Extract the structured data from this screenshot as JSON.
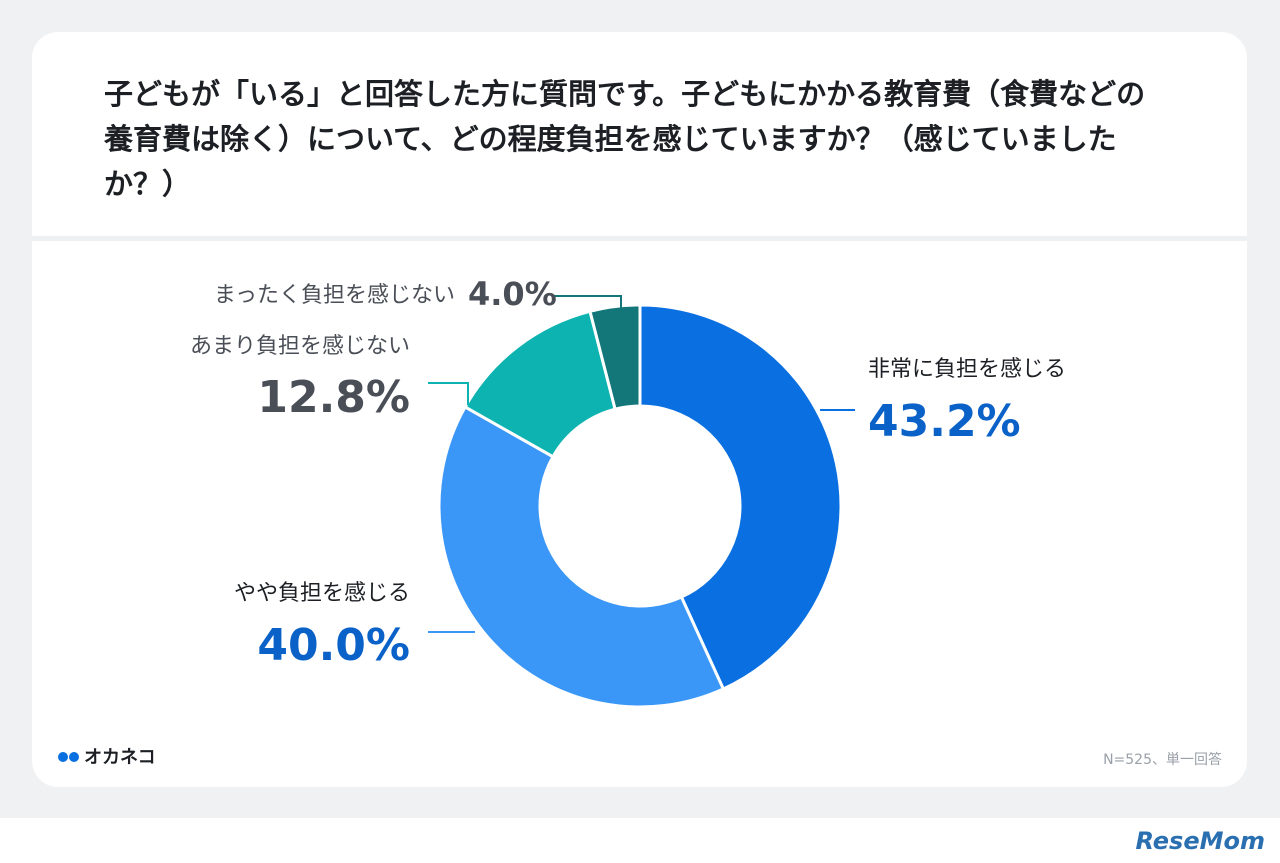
{
  "chart_data": {
    "type": "donut",
    "title": "子どもが「いる」と回答した方に質問です。子どもにかかる教育費（食費などの養育費は除く）について、どの程度負担を感じていますか？（感じていましたか？）",
    "categories": [
      "非常に負担を感じる",
      "やや負担を感じる",
      "あまり負担を感じない",
      "まったく負担を感じない"
    ],
    "values": [
      43.2,
      40.0,
      12.8,
      4.0
    ],
    "value_labels": [
      "43.2%",
      "40.0%",
      "12.8%",
      "4.0%"
    ],
    "colors": [
      "#0a6fe0",
      "#3b97f7",
      "#0cb3b0",
      "#137679"
    ],
    "note": "N=525、単一回答",
    "brand": "オカネコ",
    "watermark": "ReseMom"
  }
}
